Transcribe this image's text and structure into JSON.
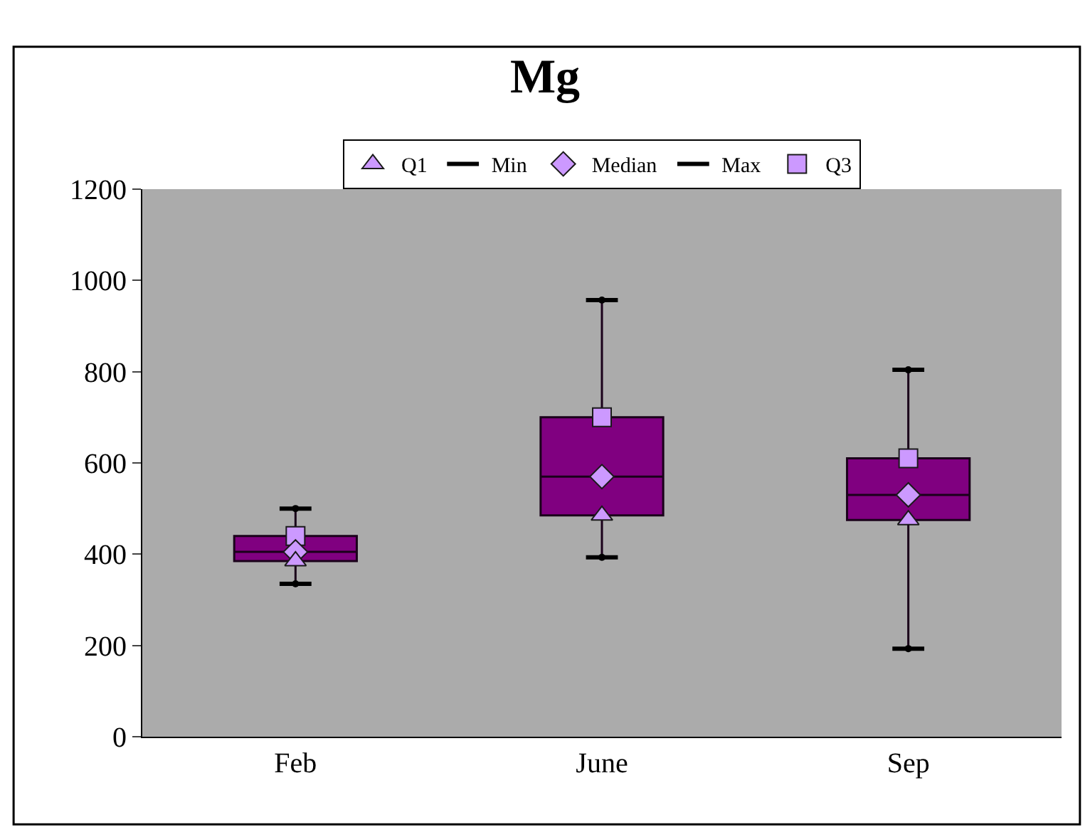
{
  "chart_data": {
    "type": "box",
    "title": "Mg",
    "categories": [
      "Feb",
      "June",
      "Sep"
    ],
    "series": [
      {
        "type": "box",
        "color": "#800080",
        "boxes": [
          {
            "low": 335,
            "q1": 385,
            "median": 405,
            "q3": 440,
            "high": 500
          },
          {
            "low": 393,
            "q1": 485,
            "median": 570,
            "q3": 700,
            "high": 957
          },
          {
            "low": 193,
            "q1": 475,
            "median": 530,
            "q3": 610,
            "high": 804
          }
        ]
      },
      {
        "name": "Q1",
        "type": "scatter",
        "marker": "triangle",
        "color": "#cc99ff",
        "values": [
          385,
          485,
          475
        ]
      },
      {
        "name": "Min",
        "type": "scatter",
        "color": "#000000",
        "values": [
          335,
          393,
          193
        ]
      },
      {
        "name": "Median",
        "type": "scatter",
        "marker": "diamond",
        "color": "#cc99ff",
        "values": [
          405,
          570,
          530
        ]
      },
      {
        "name": "Max",
        "type": "scatter",
        "color": "#000000",
        "values": [
          500,
          957,
          804
        ]
      },
      {
        "name": "Q3",
        "type": "scatter",
        "marker": "square",
        "color": "#cc99ff",
        "values": [
          440,
          700,
          610
        ]
      }
    ],
    "ylim": [
      0,
      1200
    ],
    "yticks": [
      0,
      200,
      400,
      600,
      800,
      1000,
      1200
    ],
    "grid": false,
    "legend": "top"
  }
}
